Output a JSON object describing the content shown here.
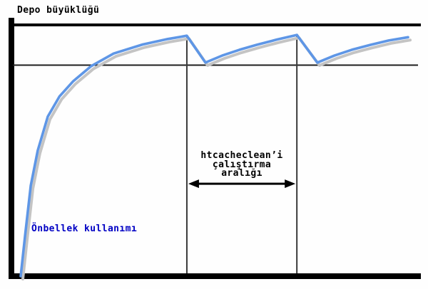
{
  "labels": {
    "y_axis": "Depo büyüklüğü",
    "curve": "Önbellek kullanımı"
  },
  "annotation": {
    "full_text": "htcacheclean’i çalıştırma aralığı",
    "lines": [
      "htcacheclean’i",
      "çalıştırma",
      "aralığı"
    ]
  },
  "colors": {
    "curve": "#5e96e6",
    "curve_shadow": "#c4c4c4",
    "axis": "#000000",
    "reference_line": "#1f1f1f",
    "guide_line": "#3a3a3a",
    "arrow": "#000000",
    "curve_label_text": "#0000c4",
    "text": "#000000"
  },
  "chart_data": {
    "type": "line",
    "title": "",
    "xlabel": "",
    "ylabel": "Depo büyüklüğü",
    "x_range": [
      0,
      100
    ],
    "y_range": [
      0,
      1.05
    ],
    "grid": false,
    "legend": "none",
    "series": [
      {
        "name": "Önbellek kullanımı",
        "points": [
          [
            0,
            0
          ],
          [
            1.2,
            0.17
          ],
          [
            2.6,
            0.36
          ],
          [
            4.4,
            0.5
          ],
          [
            7.0,
            0.635
          ],
          [
            10.0,
            0.715
          ],
          [
            13.5,
            0.775
          ],
          [
            18.2,
            0.836
          ],
          [
            24.0,
            0.886
          ],
          [
            31.5,
            0.922
          ],
          [
            38.0,
            0.944
          ],
          [
            42.9,
            0.957
          ],
          [
            47.7,
            0.85
          ],
          [
            52.0,
            0.878
          ],
          [
            56.5,
            0.901
          ],
          [
            61.0,
            0.921
          ],
          [
            66.0,
            0.941
          ],
          [
            71.3,
            0.96
          ],
          [
            76.6,
            0.85
          ],
          [
            81.0,
            0.878
          ],
          [
            85.5,
            0.901
          ],
          [
            90.4,
            0.921
          ],
          [
            95.0,
            0.938
          ],
          [
            100.0,
            0.951
          ]
        ]
      }
    ],
    "reference_lines": [
      {
        "v": 1.0,
        "style": "thick",
        "label": "Depo büyüklüğü"
      },
      {
        "v": 0.84,
        "style": "thin",
        "label": ""
      }
    ],
    "guides": [
      {
        "t": 42.9,
        "v_top": 0.96
      },
      {
        "t": 71.3,
        "v_top": 0.962
      }
    ],
    "interval_arrow": {
      "from_t": 42.9,
      "to_t": 71.3,
      "v": 0.368,
      "label": "htcacheclean’i çalıştırma aralığı"
    }
  }
}
